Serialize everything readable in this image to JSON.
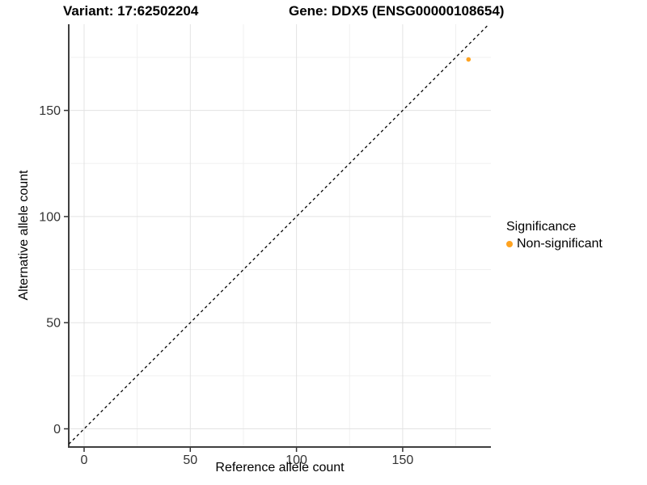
{
  "chart_data": {
    "type": "scatter",
    "title_variant": "Variant: 17:62502204",
    "title_gene": "Gene: DDX5 (ENSG00000108654)",
    "xlabel": "Reference allele count",
    "ylabel": "Alternative allele count",
    "x_ticks": [
      0,
      50,
      100,
      150
    ],
    "y_ticks": [
      0,
      50,
      100,
      150
    ],
    "x_minor_ticks": [
      25,
      75,
      125,
      175
    ],
    "y_minor_ticks": [
      25,
      75,
      125,
      175
    ],
    "xlim": [
      -7.2,
      191.5
    ],
    "ylim": [
      -8.6,
      190.6
    ],
    "grid": "major and minor light-gray gridlines on white panel",
    "identity_line": {
      "equation": "y = x",
      "style": "dashed",
      "color": "#111111"
    },
    "series": [
      {
        "name": "Non-significant",
        "marker": "circle",
        "color": "#FFA320",
        "points": [
          {
            "x": 181,
            "y": 174
          }
        ]
      }
    ],
    "legend": {
      "title": "Significance",
      "position": "right",
      "items": [
        {
          "label": "Non-significant",
          "color": "#FFA320"
        }
      ]
    },
    "colors": {
      "background": "#FFFFFF",
      "axis_line": "#3f3f3f",
      "tick_mark": "#333333",
      "tick_label": "#333333",
      "grid_major": "#E3E3E3",
      "grid_minor": "#F0F0F0"
    }
  }
}
